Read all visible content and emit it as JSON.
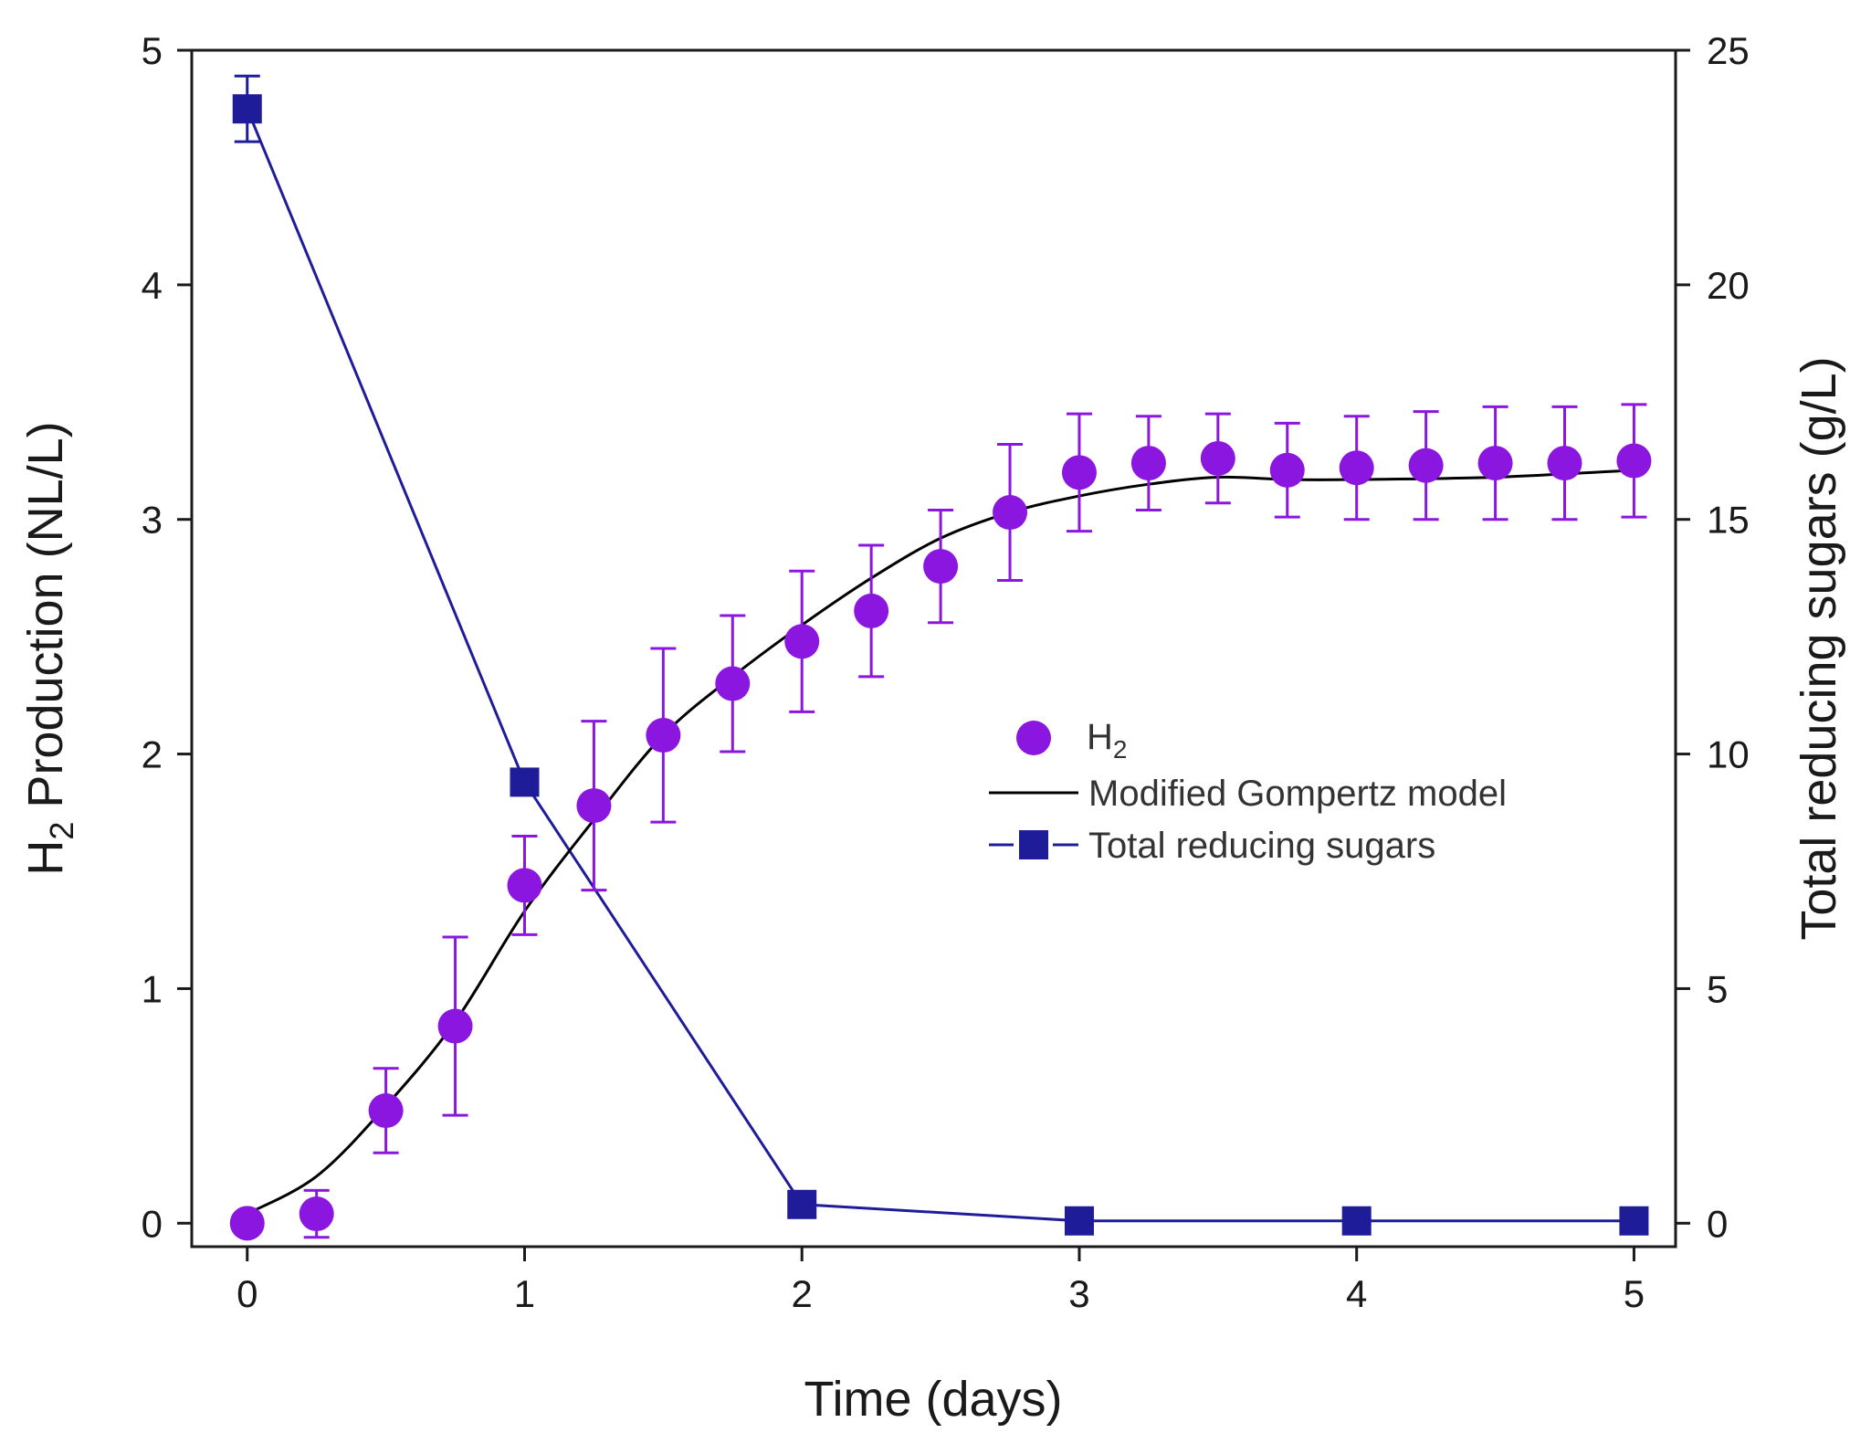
{
  "colors": {
    "h2": "#8B16E0",
    "fit": "#000000",
    "sugars": "#1F1C9A",
    "axis": "#1a1a1a"
  },
  "chart_data": {
    "type": "scatter",
    "title": "",
    "xlabel": "Time (days)",
    "ylabel_left": {
      "pre": "H",
      "sub": "2",
      "post": " Production (NL/L)"
    },
    "ylabel_right": "Total reducing sugars (g/L)",
    "xlim": [
      -0.2,
      5.15
    ],
    "ylim_left": [
      -0.1,
      5
    ],
    "ylim_right": [
      -0.5,
      25
    ],
    "x_ticks": [
      0,
      1,
      2,
      3,
      4,
      5
    ],
    "y_left_ticks": [
      0,
      1,
      2,
      3,
      4,
      5
    ],
    "y_right_ticks": [
      0,
      5,
      10,
      15,
      20,
      25
    ],
    "legend_position": "center-right",
    "legend": {
      "h2": {
        "pre": "H",
        "sub": "2"
      },
      "fit": "Modified Gompertz model",
      "sugars": "Total reducing sugars"
    },
    "series": [
      {
        "name": "H2",
        "axis": "left",
        "marker": "circle",
        "x": [
          0,
          0.25,
          0.5,
          0.75,
          1,
          1.25,
          1.5,
          1.75,
          2,
          2.25,
          2.5,
          2.75,
          3,
          3.25,
          3.5,
          3.75,
          4,
          4.25,
          4.5,
          4.75,
          5
        ],
        "y": [
          0,
          0.04,
          0.48,
          0.84,
          1.44,
          1.78,
          2.08,
          2.3,
          2.48,
          2.61,
          2.8,
          3.03,
          3.2,
          3.24,
          3.26,
          3.21,
          3.22,
          3.23,
          3.24,
          3.24,
          3.25
        ],
        "error": [
          0,
          0.1,
          0.18,
          0.38,
          0.21,
          0.36,
          0.37,
          0.29,
          0.3,
          0.28,
          0.24,
          0.29,
          0.25,
          0.2,
          0.19,
          0.2,
          0.22,
          0.23,
          0.24,
          0.24,
          0.24
        ]
      },
      {
        "name": "Modified Gompertz model",
        "axis": "left",
        "marker": "line",
        "x": [
          0,
          0.25,
          0.5,
          0.75,
          1,
          1.25,
          1.5,
          1.75,
          2,
          2.25,
          2.5,
          2.75,
          3,
          3.25,
          3.5,
          3.75,
          4,
          4.5,
          5
        ],
        "y": [
          0.04,
          0.2,
          0.5,
          0.86,
          1.33,
          1.72,
          2.08,
          2.33,
          2.55,
          2.75,
          2.92,
          3.03,
          3.1,
          3.15,
          3.18,
          3.17,
          3.17,
          3.18,
          3.21
        ]
      },
      {
        "name": "Total reducing sugars",
        "axis": "right",
        "marker": "square",
        "x": [
          0,
          1,
          2,
          3,
          4,
          5
        ],
        "y": [
          23.75,
          9.4,
          0.4,
          0.05,
          0.05,
          0.05
        ],
        "error": [
          0.7,
          0,
          0,
          0,
          0,
          0
        ]
      }
    ]
  }
}
